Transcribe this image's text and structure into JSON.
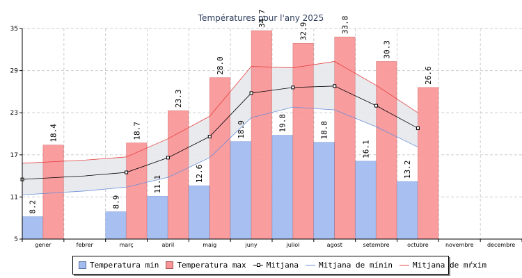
{
  "colors": {
    "min_bar": "#a3bdf0",
    "max_bar": "#f99597",
    "avg_line": "#000000",
    "avg_min_line": "#6a8ed8",
    "avg_max_line": "#e84040",
    "band_fill": "#e6e8ec",
    "grid": "#cccccc"
  },
  "legend": {
    "min": "Temperatura min",
    "max": "Temperatura max",
    "avg": "Mitjana",
    "avg_min": "Mitjana de mínin",
    "avg_max": "Mitjana de mŕxim"
  },
  "chart_data": {
    "type": "bar",
    "title": "Températures pour l'any 2025",
    "categories": [
      "gener",
      "febrer",
      "març",
      "abril",
      "maig",
      "juny",
      "juliol",
      "agost",
      "setembre",
      "octubre",
      "novembre",
      "decembre"
    ],
    "yticks": [
      5,
      11,
      17,
      23,
      29,
      35
    ],
    "ylim": [
      5,
      35
    ],
    "series": [
      {
        "name": "Temperatura min",
        "kind": "bar",
        "values": [
          8.2,
          null,
          8.9,
          11.1,
          12.6,
          18.9,
          19.8,
          18.8,
          16.1,
          13.2,
          null,
          null
        ],
        "labels": [
          "8.2",
          "",
          "8.9",
          "11.1",
          "12.6",
          "18.9",
          "19.8",
          "18.8",
          "16.1",
          "13.2",
          "",
          ""
        ]
      },
      {
        "name": "Temperatura max",
        "kind": "bar",
        "values": [
          18.4,
          null,
          18.7,
          23.3,
          28.0,
          34.7,
          32.9,
          33.8,
          30.3,
          26.6,
          null,
          null
        ],
        "labels": [
          "18.4",
          "",
          "18.7",
          "23.3",
          "28.0",
          "34.7",
          "32.9",
          "33.8",
          "30.3",
          "26.6",
          "",
          ""
        ]
      },
      {
        "name": "Mitjana",
        "kind": "line",
        "values": [
          13.5,
          null,
          14.5,
          16.6,
          19.6,
          25.8,
          26.6,
          26.8,
          24.0,
          20.8,
          null,
          null
        ]
      },
      {
        "name": "Mitjana de mínin",
        "kind": "line",
        "values": [
          11.3,
          null,
          12.4,
          13.8,
          16.6,
          22.3,
          23.8,
          23.4,
          21.0,
          18.1,
          null,
          null
        ]
      },
      {
        "name": "Mitjana de mŕxim",
        "kind": "line",
        "values": [
          15.8,
          null,
          16.7,
          19.3,
          22.5,
          29.6,
          29.4,
          30.3,
          26.9,
          23.0,
          null,
          null
        ]
      }
    ]
  }
}
